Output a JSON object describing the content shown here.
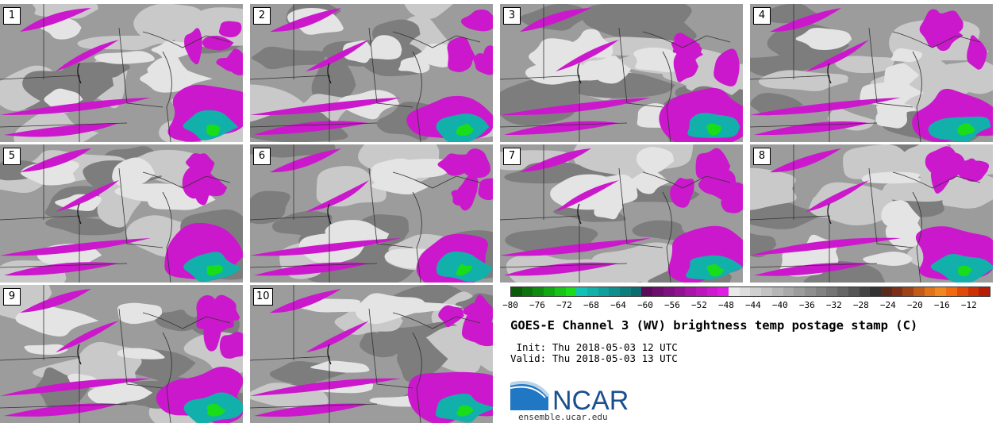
{
  "map": {
    "title": "GOES-E Channel 3 (WV) brightness temp postage stamp (C)",
    "init_label": "Init:",
    "init_time": "Thu 2018-05-03 12 UTC",
    "valid_label": "Valid:",
    "valid_time": "Thu 2018-05-03 13 UTC",
    "members": [
      "1",
      "2",
      "3",
      "4",
      "5",
      "6",
      "7",
      "8",
      "9",
      "10"
    ],
    "colorbar": {
      "ticks": [
        "−80",
        "−76",
        "−72",
        "−68",
        "−64",
        "−60",
        "−56",
        "−52",
        "−48",
        "−44",
        "−40",
        "−36",
        "−32",
        "−28",
        "−24",
        "−20",
        "−16",
        "−12"
      ],
      "colors": [
        "#0a5c0a",
        "#0d740d",
        "#0f8c0f",
        "#12a812",
        "#17c417",
        "#19dd19",
        "#12c2b4",
        "#11b0a8",
        "#10a09c",
        "#0e8f8d",
        "#0c7e7e",
        "#0b6d70",
        "#5c0a5c",
        "#6d0d6d",
        "#800f80",
        "#931293",
        "#a815a8",
        "#bc17bc",
        "#d01ad0",
        "#e01de0",
        "#e9e9e9",
        "#dddddd",
        "#d0d0d0",
        "#c3c3c3",
        "#b6b6b6",
        "#a9a9a9",
        "#9c9c9c",
        "#8f8f8f",
        "#828282",
        "#757575",
        "#666666",
        "#555555",
        "#444444",
        "#333333",
        "#5a2a1a",
        "#7a3018",
        "#a04218",
        "#c25a18",
        "#e07218",
        "#f08820",
        "#f06a10",
        "#e04a08",
        "#cc3005",
        "#b81e05"
      ]
    },
    "logo": {
      "name": "NCAR",
      "url": "ensemble.ucar.edu",
      "brand_color": "#1a4f8f"
    }
  }
}
